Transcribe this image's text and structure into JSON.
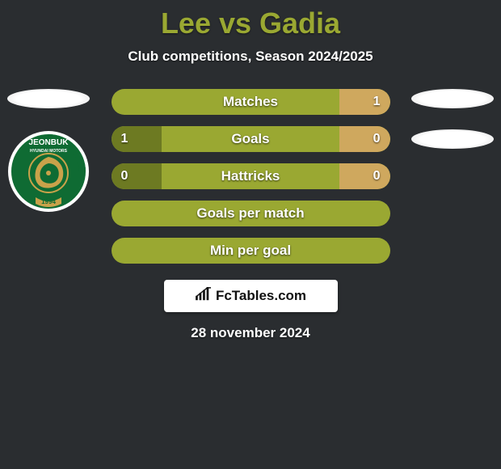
{
  "header": {
    "title": "Lee vs Gadia",
    "subtitle": "Club competitions, Season 2024/2025",
    "title_color": "#9aa832",
    "text_color": "#ffffff"
  },
  "background_color": "#2a2d30",
  "left_player": {
    "name": "Lee",
    "club_badge": {
      "text_top": "JEONBUK",
      "text_mid": "HYUNDAI MOTORS",
      "year": "1994",
      "primary": "#1f7a3a",
      "secondary": "#c9a24a"
    }
  },
  "right_player": {
    "name": "Gadia"
  },
  "stats": {
    "bar_bg": "#9aa832",
    "bar_left_fill": "#6d7a22",
    "bar_right_fill": "#cfa85e",
    "rows": [
      {
        "label": "Matches",
        "left": "",
        "right": "1",
        "left_pct": 0,
        "right_pct": 18
      },
      {
        "label": "Goals",
        "left": "1",
        "right": "0",
        "left_pct": 18,
        "right_pct": 18
      },
      {
        "label": "Hattricks",
        "left": "0",
        "right": "0",
        "left_pct": 18,
        "right_pct": 18
      },
      {
        "label": "Goals per match",
        "left": "",
        "right": "",
        "left_pct": 0,
        "right_pct": 0
      },
      {
        "label": "Min per goal",
        "left": "",
        "right": "",
        "left_pct": 0,
        "right_pct": 0
      }
    ]
  },
  "footer": {
    "brand": "FcTables.com",
    "date": "28 november 2024"
  }
}
